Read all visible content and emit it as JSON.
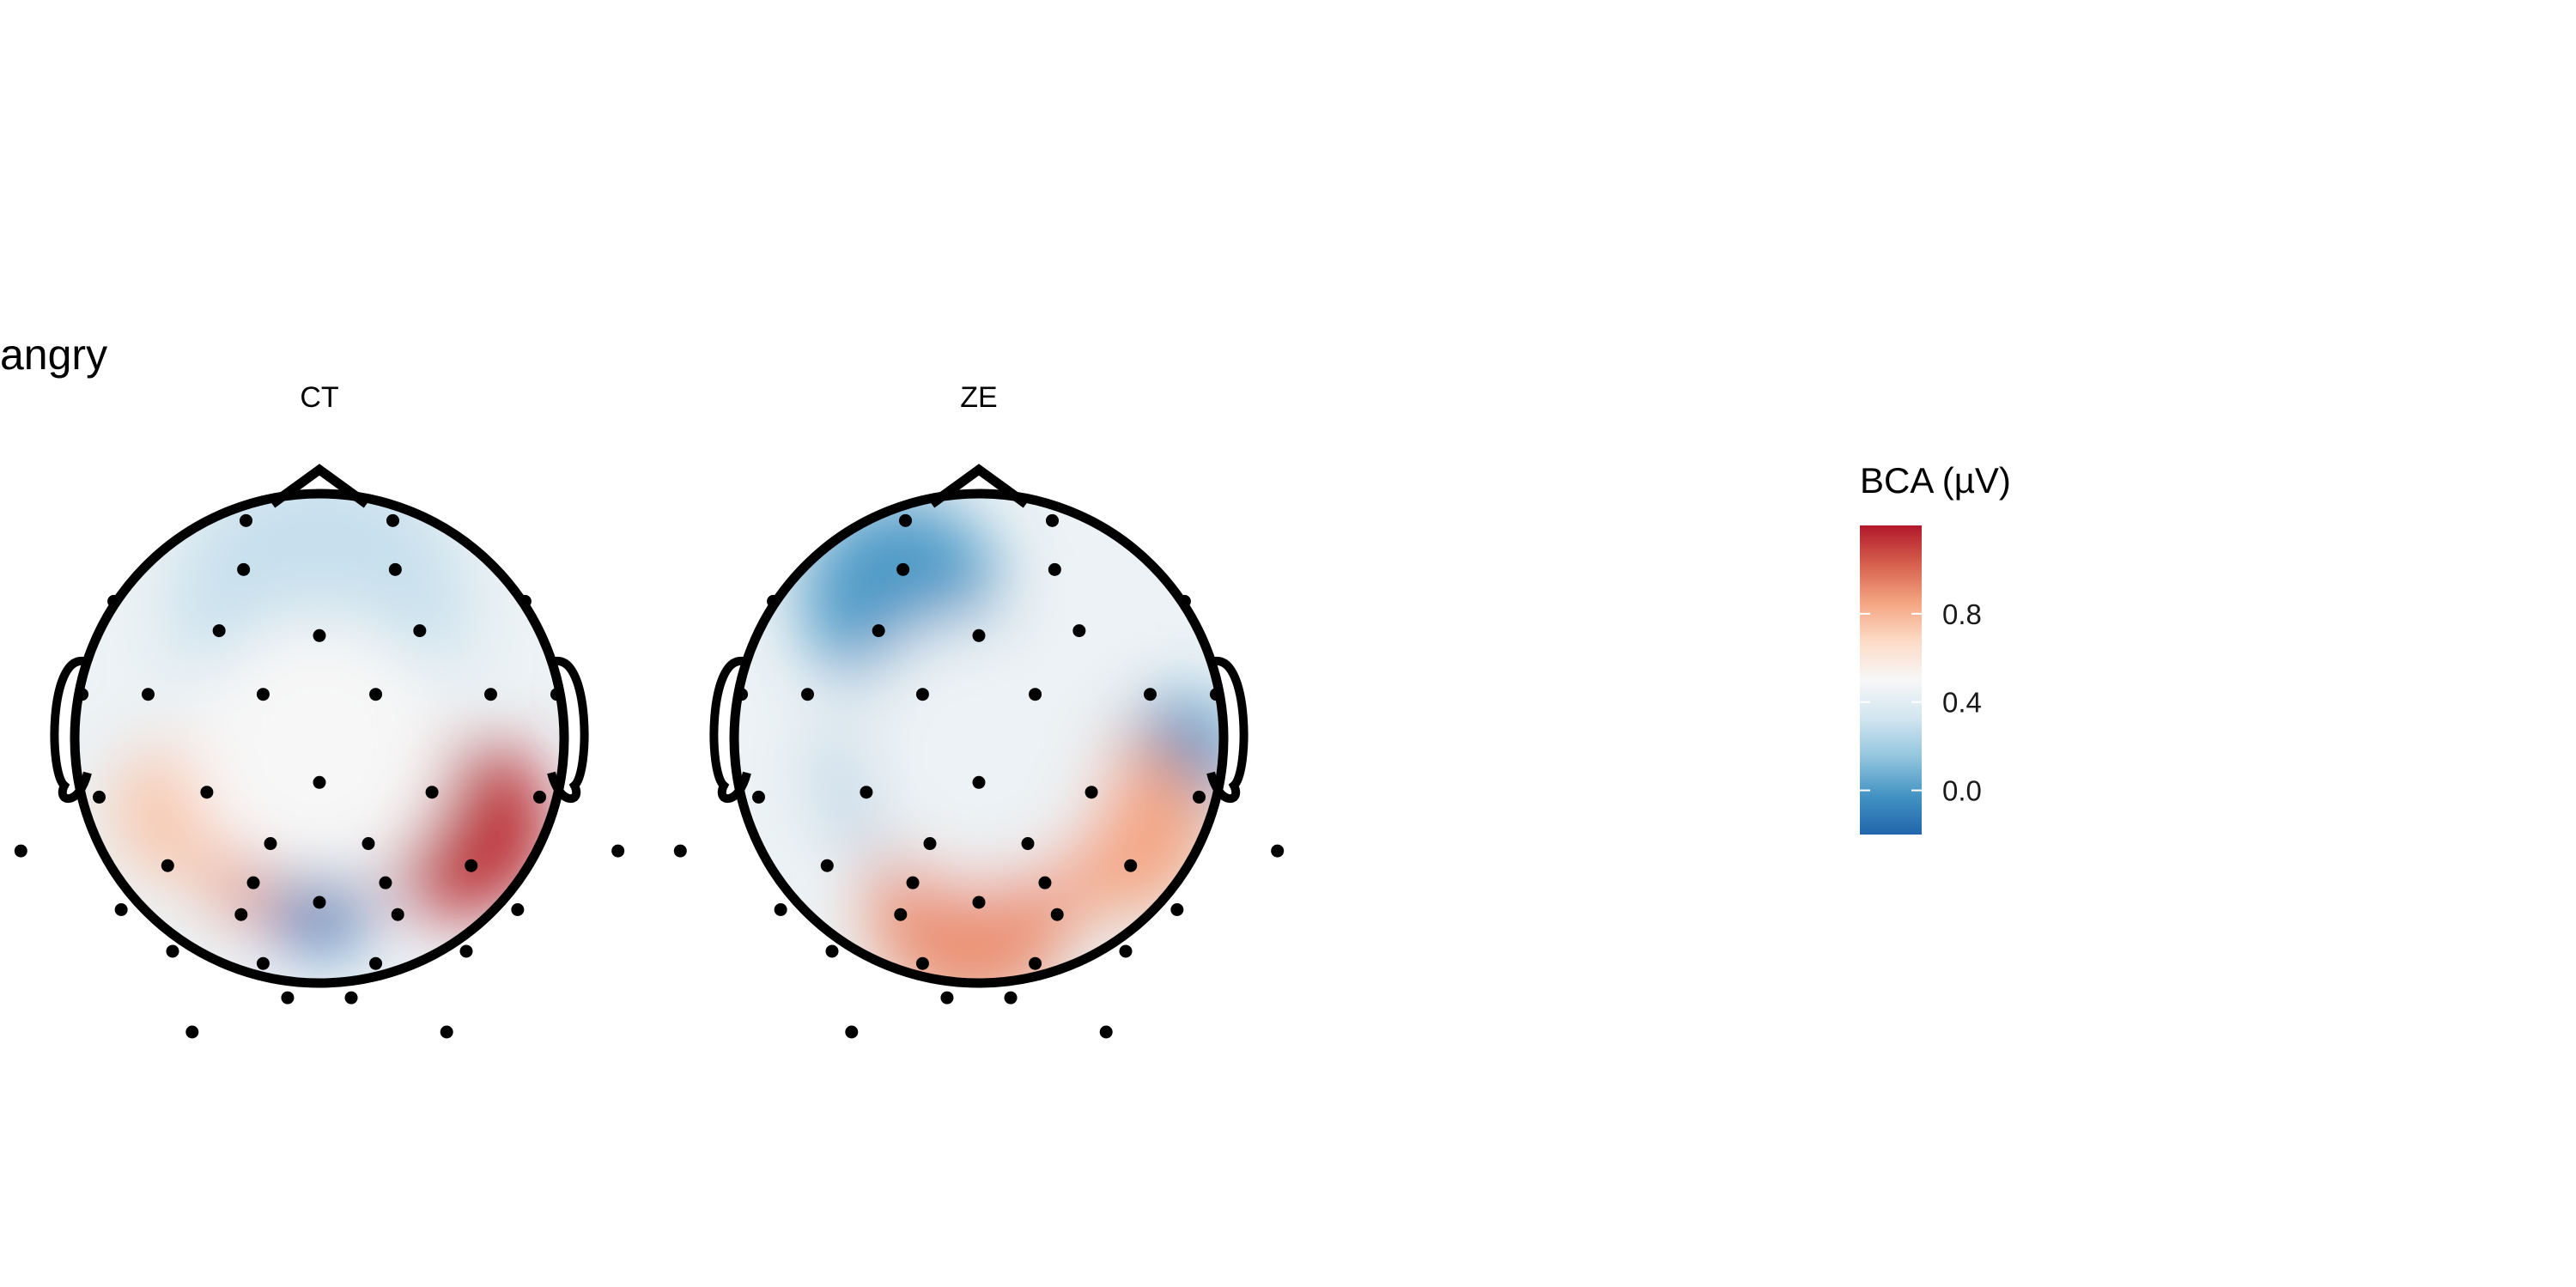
{
  "chart_data": {
    "type": "heatmap",
    "subtype": "scalp-topography",
    "title": "angry",
    "panels": [
      {
        "label": "CT",
        "hotspots": [
          {
            "region": "right-parieto-occipital",
            "value": 1.15
          },
          {
            "region": "left-occipital",
            "value": 0.95
          },
          {
            "region": "left-parieto-occipital",
            "value": 0.75
          },
          {
            "region": "central-occipital",
            "value": -0.2
          },
          {
            "region": "frontal",
            "value": 0.3
          },
          {
            "region": "central",
            "value": 0.5
          }
        ]
      },
      {
        "label": "ZE",
        "hotspots": [
          {
            "region": "left-frontal",
            "value": 0.0
          },
          {
            "region": "left-central",
            "value": 0.05
          },
          {
            "region": "right-temporal",
            "value": -0.05
          },
          {
            "region": "occipital",
            "value": 0.9
          },
          {
            "region": "right-parieto-occipital",
            "value": 0.85
          },
          {
            "region": "central",
            "value": 0.45
          }
        ]
      }
    ],
    "colorbar": {
      "title": "BCA (µV)",
      "ticks": [
        "0.0",
        "0.4",
        "0.8"
      ],
      "tick_values": [
        0.0,
        0.4,
        0.8
      ],
      "range": [
        -0.2,
        1.2
      ],
      "colors": [
        "#2166ac",
        "#4393c3",
        "#92c5de",
        "#d1e5f0",
        "#f7f7f7",
        "#fddbc7",
        "#f4a582",
        "#d6604d",
        "#b2182b"
      ]
    }
  }
}
